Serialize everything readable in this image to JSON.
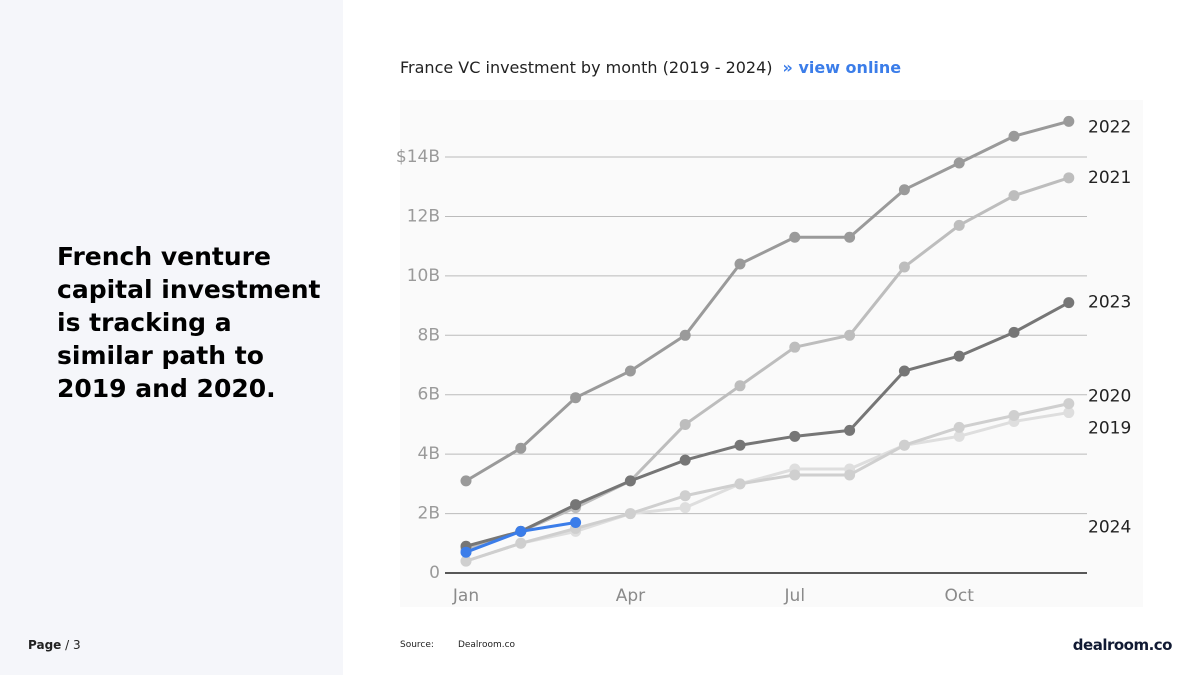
{
  "headline": "French venture capital investment is tracking a similar path to 2019 and 2020.",
  "page": {
    "label": "Page",
    "number": "/ 3"
  },
  "source": {
    "label": "Source:",
    "value": "Dealroom.co"
  },
  "logo": "dealroom.co",
  "link": "» view online",
  "chart_data": {
    "type": "line",
    "title": "France VC investment by month (2019 - 2024)",
    "categories": [
      "Jan",
      null,
      null,
      "Apr",
      null,
      null,
      "Jul",
      null,
      null,
      "Oct",
      null,
      null
    ],
    "ylim": [
      0,
      16
    ],
    "yticks": [
      0,
      {
        "value": 2,
        "label": "2B"
      },
      {
        "value": 4,
        "label": "4B"
      },
      {
        "value": 6,
        "label": "6B"
      },
      {
        "value": 8,
        "label": "8B"
      },
      {
        "value": 10,
        "label": "10B"
      },
      {
        "value": 12,
        "label": "12B"
      },
      {
        "value": 14,
        "label": "$14B"
      }
    ],
    "grid": true,
    "series": [
      {
        "name": "2019",
        "color": "#dedede",
        "values": [
          0.4,
          1.0,
          1.4,
          2.0,
          2.2,
          3.0,
          3.5,
          3.5,
          4.3,
          4.6,
          5.1,
          5.4
        ]
      },
      {
        "name": "2020",
        "color": "#cfcfcf",
        "values": [
          0.4,
          1.0,
          1.5,
          2.0,
          2.6,
          3.0,
          3.3,
          3.3,
          4.3,
          4.9,
          5.3,
          5.7
        ]
      },
      {
        "name": "2021",
        "color": "#bdbdbd",
        "values": [
          0.8,
          1.4,
          2.2,
          3.1,
          5.0,
          6.3,
          7.6,
          8.0,
          10.3,
          11.7,
          12.7,
          13.3
        ]
      },
      {
        "name": "2022",
        "color": "#9a9a9a",
        "values": [
          3.1,
          4.2,
          5.9,
          6.8,
          8.0,
          10.4,
          11.3,
          11.3,
          12.9,
          13.8,
          14.7,
          15.2
        ]
      },
      {
        "name": "2023",
        "color": "#767676",
        "values": [
          0.9,
          1.4,
          2.3,
          3.1,
          3.8,
          4.3,
          4.6,
          4.8,
          6.8,
          7.3,
          8.1,
          9.1
        ]
      },
      {
        "name": "2024",
        "color": "#3b7de9",
        "values": [
          0.7,
          1.4,
          1.7,
          null,
          null,
          null,
          null,
          null,
          null,
          null,
          null,
          null
        ]
      }
    ]
  }
}
